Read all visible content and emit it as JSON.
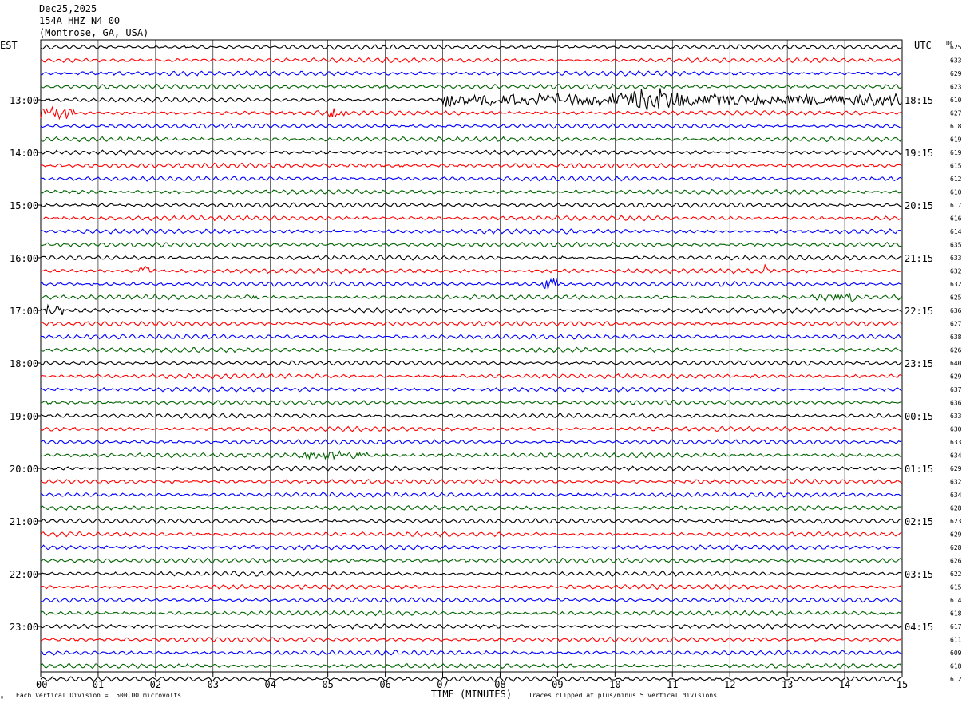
{
  "header": {
    "date": "Dec25,2025",
    "station": "154A HHZ N4 00",
    "location": "(Montrose, GA, USA)"
  },
  "chart_data": {
    "type": "line",
    "title": "Dec25,2025",
    "left_axis_label": "EST",
    "right_axis_label": "UTC",
    "dc_label": "DC",
    "xlabel": "TIME (MINUTES)",
    "x_ticks": [
      "00",
      "01",
      "02",
      "03",
      "04",
      "05",
      "06",
      "07",
      "08",
      "09",
      "10",
      "11",
      "12",
      "13",
      "14",
      "15"
    ],
    "xlim": [
      0,
      15
    ],
    "trace_colors": [
      "#000000",
      "#ff0000",
      "#0000ff",
      "#006400"
    ],
    "left_hour_labels": [
      "13:00",
      "14:00",
      "15:00",
      "16:00",
      "17:00",
      "18:00",
      "19:00",
      "20:00",
      "21:00",
      "22:00",
      "23:00"
    ],
    "right_hour_labels": [
      "18:15",
      "19:15",
      "20:15",
      "21:15",
      "22:15",
      "23:15",
      "00:15",
      "01:15",
      "02:15",
      "03:15",
      "04:15"
    ],
    "dc_offsets": [
      625,
      633,
      629,
      623,
      610,
      627,
      618,
      619,
      619,
      615,
      612,
      610,
      617,
      616,
      614,
      635,
      633,
      632,
      632,
      625,
      636,
      627,
      638,
      626,
      640,
      629,
      637,
      636,
      633,
      630,
      633,
      634,
      629,
      632,
      634,
      628,
      623,
      629,
      628,
      626,
      622,
      615,
      614,
      618,
      617,
      611,
      609,
      618,
      612
    ],
    "events": [
      {
        "row": 4,
        "start_min": 7.0,
        "end_min": 15.0,
        "amplitude": "large",
        "peak_min": 10.7
      },
      {
        "row": 5,
        "start_min": 0.0,
        "end_min": 0.6,
        "amplitude": "moderate"
      },
      {
        "row": 5,
        "start_min": 5.0,
        "end_min": 5.3,
        "amplitude": "moderate"
      },
      {
        "row": 17,
        "start_min": 1.7,
        "end_min": 1.9,
        "amplitude": "moderate"
      },
      {
        "row": 17,
        "start_min": 12.6,
        "end_min": 12.7,
        "amplitude": "moderate"
      },
      {
        "row": 18,
        "start_min": 8.75,
        "end_min": 9.0,
        "amplitude": "moderate"
      },
      {
        "row": 19,
        "start_min": 3.6,
        "end_min": 3.8,
        "amplitude": "small"
      },
      {
        "row": 19,
        "start_min": 13.4,
        "end_min": 14.2,
        "amplitude": "small"
      },
      {
        "row": 20,
        "start_min": 0.05,
        "end_min": 0.45,
        "amplitude": "moderate"
      },
      {
        "row": 31,
        "start_min": 4.5,
        "end_min": 5.7,
        "amplitude": "small"
      }
    ]
  },
  "footer": {
    "scale_note": "Each Vertical Division =  500.00 microvolts",
    "clip_note": "Traces clipped at plus/minus 5 vertical divisions"
  }
}
